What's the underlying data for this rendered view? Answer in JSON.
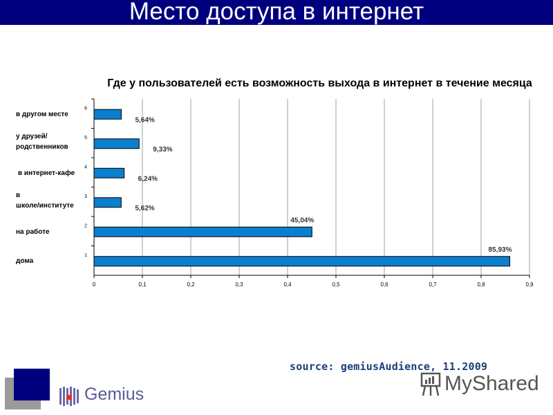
{
  "slide_title": "Место доступа в интернет",
  "source": "source: gemiusAudience, 11.2009",
  "logos": {
    "gemius": "Gemius",
    "myshared": "MyShared"
  },
  "colors": {
    "title_bar": "#00007f",
    "bar_fill": "#0a7fcf",
    "bar_border": "#000000",
    "grid": "#a0a0a0"
  },
  "chart_data": {
    "type": "bar",
    "orientation": "horizontal",
    "title": "Где у пользователей есть возможность выхода в интернет в течение месяца",
    "categories": [
      "дома",
      "на работе",
      "в школе/институте",
      "в интернет-кафе",
      "у друзей/ родственников",
      "в другом месте"
    ],
    "category_labels": [
      [
        "дома"
      ],
      [
        "на работе"
      ],
      [
        "в",
        "школе/институте"
      ],
      [
        "в интернет-кафе"
      ],
      [
        "у друзей/",
        "родственников"
      ],
      [
        "в другом месте"
      ]
    ],
    "y_tick_labels": [
      "1",
      "2",
      "3",
      "4",
      "5",
      "6"
    ],
    "values": [
      0.8593,
      0.4504,
      0.0562,
      0.0624,
      0.0933,
      0.0564
    ],
    "data_labels": [
      "85,93%",
      "45,04%",
      "5,62%",
      "6,24%",
      "9,33%",
      "5,64%"
    ],
    "xlim": [
      0,
      0.9
    ],
    "x_ticks": [
      0,
      0.1,
      0.2,
      0.3,
      0.4,
      0.5,
      0.6,
      0.7,
      0.8,
      0.9
    ],
    "x_tick_labels": [
      "0",
      "0,1",
      "0,2",
      "0,3",
      "0,4",
      "0,5",
      "0,6",
      "0,7",
      "0,8",
      "0,9"
    ],
    "grid": "vertical",
    "legend": "none"
  }
}
